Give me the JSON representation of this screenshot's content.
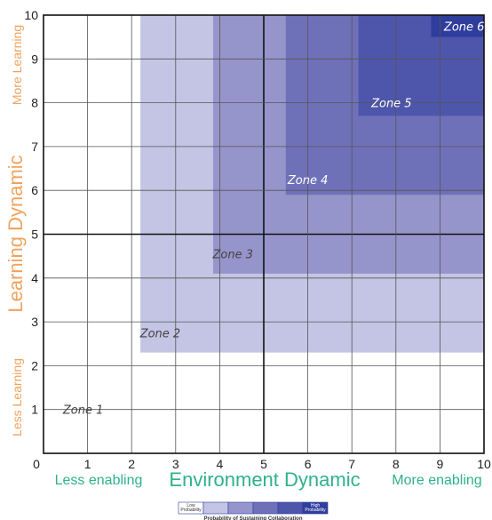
{
  "chart_data": {
    "type": "heatmap",
    "xlim": [
      0,
      10
    ],
    "ylim": [
      0,
      10
    ],
    "xticks": [
      "0",
      "1",
      "2",
      "3",
      "4",
      "5",
      "6",
      "7",
      "8",
      "9",
      "10"
    ],
    "yticks": [
      "1",
      "2",
      "3",
      "4",
      "5",
      "6",
      "7",
      "8",
      "9",
      "10"
    ],
    "grid": true,
    "xlabel": "Environment Dynamic",
    "ylabel": "Learning Dynamic",
    "x_low_label": "Less enabling",
    "x_high_label": "More enabling",
    "y_low_label": "Less Learning",
    "y_high_label": "More Learning",
    "zones": [
      {
        "name": "Zone 1",
        "x0": 0,
        "y0": 0,
        "x1": 10,
        "y1": 10,
        "label_x": 0.9,
        "label_y": 1.0,
        "color": "#ffffff"
      },
      {
        "name": "Zone 2",
        "x0": 2.2,
        "y0": 2.3,
        "x1": 10,
        "y1": 10,
        "label_x": 2.65,
        "label_y": 2.75,
        "color": "#c4c4e4"
      },
      {
        "name": "Zone 3",
        "x0": 3.85,
        "y0": 4.1,
        "x1": 10,
        "y1": 10,
        "label_x": 4.3,
        "label_y": 4.55,
        "color": "#9595cc"
      },
      {
        "name": "Zone 4",
        "x0": 5.5,
        "y0": 5.9,
        "x1": 10,
        "y1": 10,
        "label_x": 6.0,
        "label_y": 6.25,
        "color": "#6e71b8"
      },
      {
        "name": "Zone 5",
        "x0": 7.15,
        "y0": 7.7,
        "x1": 10,
        "y1": 10,
        "label_x": 7.9,
        "label_y": 8.0,
        "color": "#4e56ab"
      },
      {
        "name": "Zone 6",
        "x0": 8.8,
        "y0": 9.5,
        "x1": 10,
        "y1": 10,
        "label_x": 9.55,
        "label_y": 9.75,
        "color": "#2f3d9c"
      }
    ],
    "legend": {
      "low": "Low\nProbability",
      "high": "High\nProbability",
      "title": "Probability of Sustaining Collaboration",
      "colors": [
        "#ffffff",
        "#c4c4e4",
        "#9595cc",
        "#6e71b8",
        "#4e56ab",
        "#2f3d9c"
      ]
    }
  }
}
